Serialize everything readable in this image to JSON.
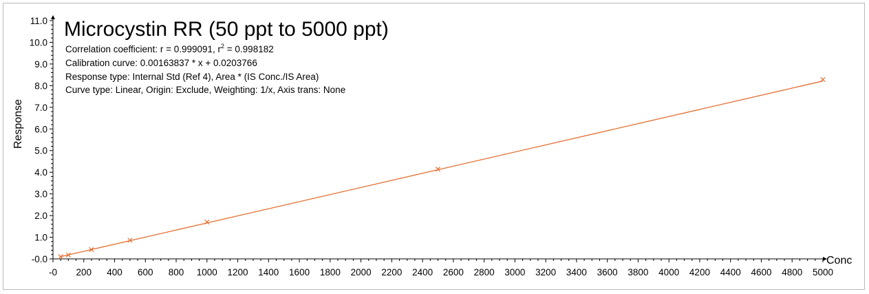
{
  "chart_data": {
    "type": "scatter",
    "title": "Microcystin RR (50 ppt to 5000 ppt)",
    "info_lines": {
      "correlation_prefix": "Correlation coefficient: r = 0.999091, r",
      "correlation_sup": "2",
      "correlation_suffix": " = 0.998182",
      "calibration": "Calibration curve: 0.00163837 * x + 0.0203766",
      "response_type": "Response type: Internal Std (Ref 4), Area * (IS Conc./IS Area)",
      "curve_type": "Curve type: Linear, Origin: Exclude, Weighting: 1/x, Axis trans: None"
    },
    "xlabel": "Conc",
    "ylabel": "Response",
    "xlim": [
      0,
      5000
    ],
    "ylim": [
      0,
      11
    ],
    "x_ticks": [
      0,
      200,
      400,
      600,
      800,
      1000,
      1200,
      1400,
      1600,
      1800,
      2000,
      2200,
      2400,
      2600,
      2800,
      3000,
      3200,
      3400,
      3600,
      3800,
      4000,
      4200,
      4400,
      4600,
      4800,
      5000
    ],
    "x_tick_labels": [
      "-0",
      "200",
      "400",
      "600",
      "800",
      "1000",
      "1200",
      "1400",
      "1600",
      "1800",
      "2000",
      "2200",
      "2400",
      "2600",
      "2800",
      "3000",
      "3200",
      "3400",
      "3600",
      "3800",
      "4000",
      "4200",
      "4400",
      "4600",
      "4800",
      "5000"
    ],
    "y_ticks": [
      0,
      1,
      2,
      3,
      4,
      5,
      6,
      7,
      8,
      9,
      10,
      11
    ],
    "y_tick_labels": [
      "-0.0",
      "1.0",
      "2.0",
      "3.0",
      "4.0",
      "5.0",
      "6.0",
      "7.0",
      "8.0",
      "9.0",
      "10.0",
      "11.0"
    ],
    "points": [
      {
        "x": 50,
        "y": 0.1
      },
      {
        "x": 100,
        "y": 0.18
      },
      {
        "x": 250,
        "y": 0.43
      },
      {
        "x": 500,
        "y": 0.86
      },
      {
        "x": 1000,
        "y": 1.7
      },
      {
        "x": 2500,
        "y": 4.14
      },
      {
        "x": 5000,
        "y": 8.28
      }
    ],
    "fit": {
      "slope": 0.00163837,
      "intercept": 0.0203766,
      "x_from": 50,
      "x_to": 5000
    },
    "color": "#e36c2d",
    "grid": false
  }
}
